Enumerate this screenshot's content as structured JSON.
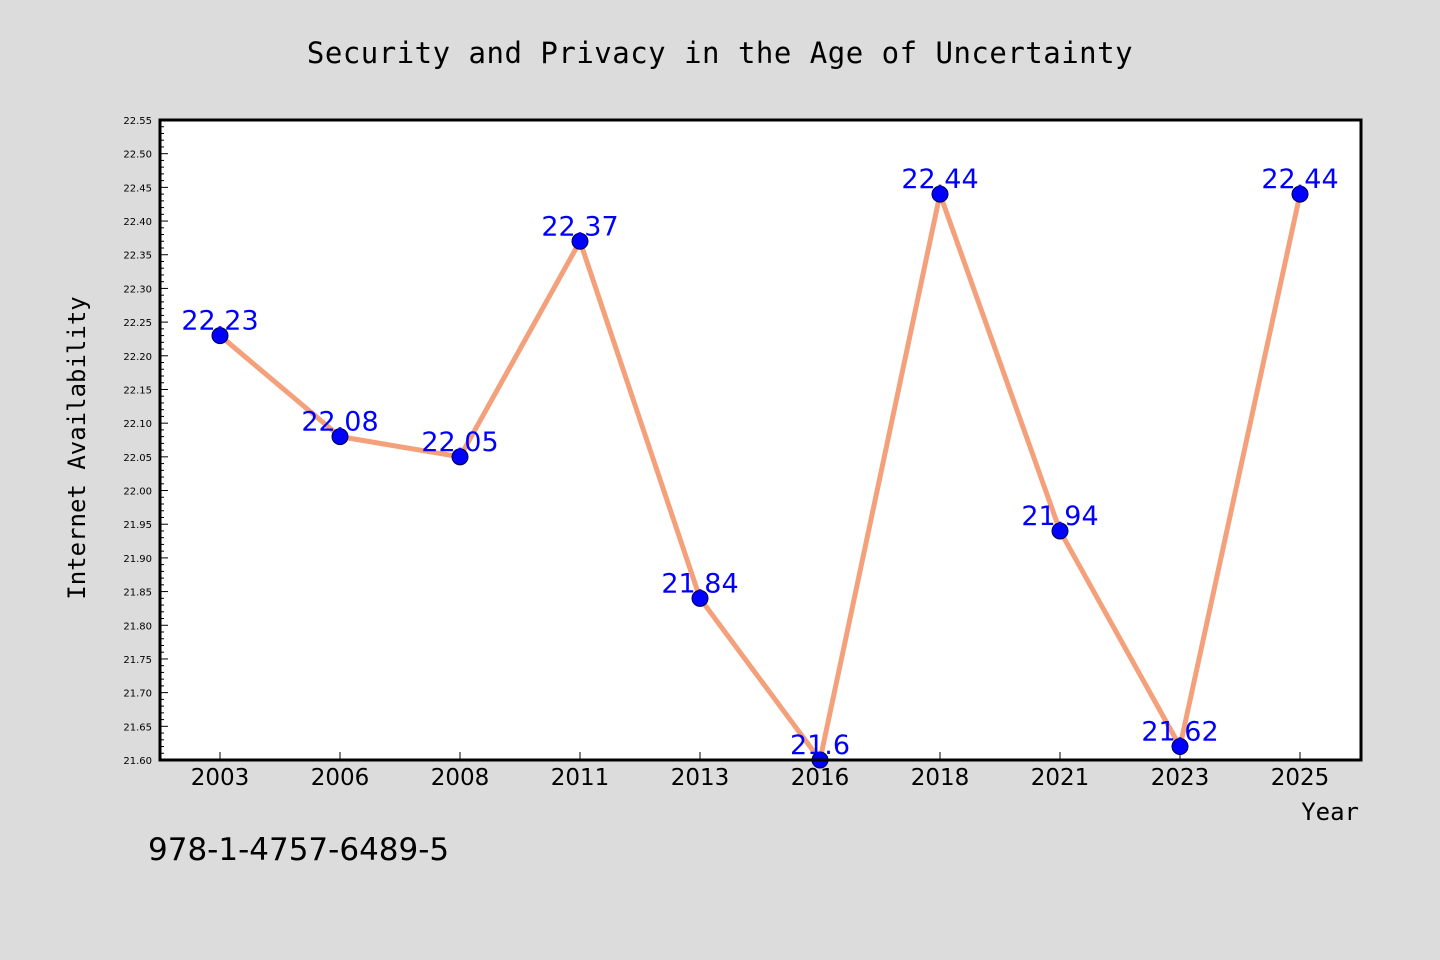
{
  "figure": {
    "background": "#dcdcdc",
    "isbn_text": "978-1-4757-6489-5"
  },
  "chart_data": {
    "type": "line",
    "title": "Security and Privacy in the Age of Uncertainty",
    "xlabel": "Year",
    "ylabel": "Internet Availability",
    "categories": [
      "2003",
      "2006",
      "2008",
      "2011",
      "2013",
      "2016",
      "2018",
      "2021",
      "2023",
      "2025"
    ],
    "series": [
      {
        "values": [
          22.23,
          22.08,
          22.05,
          22.37,
          21.84,
          21.6,
          22.44,
          21.94,
          21.62,
          22.44
        ],
        "data_labels": [
          "22.23",
          "22.08",
          "22.05",
          "22.37",
          "21.84",
          "21.6",
          "22.44",
          "21.94",
          "21.62",
          "22.44"
        ],
        "line_color": "#f4a07a",
        "marker_color": "#0000ff",
        "label_color": "#0000ff"
      }
    ],
    "ylim": [
      21.6,
      22.55
    ],
    "yticks": [
      "21.60",
      "21.65",
      "21.70",
      "21.75",
      "21.80",
      "21.85",
      "21.90",
      "21.95",
      "22.00",
      "22.05",
      "22.10",
      "22.15",
      "22.20",
      "22.25",
      "22.30",
      "22.35",
      "22.40",
      "22.45",
      "22.50",
      "22.55"
    ],
    "grid": false,
    "plot_background": "#ffffff"
  }
}
